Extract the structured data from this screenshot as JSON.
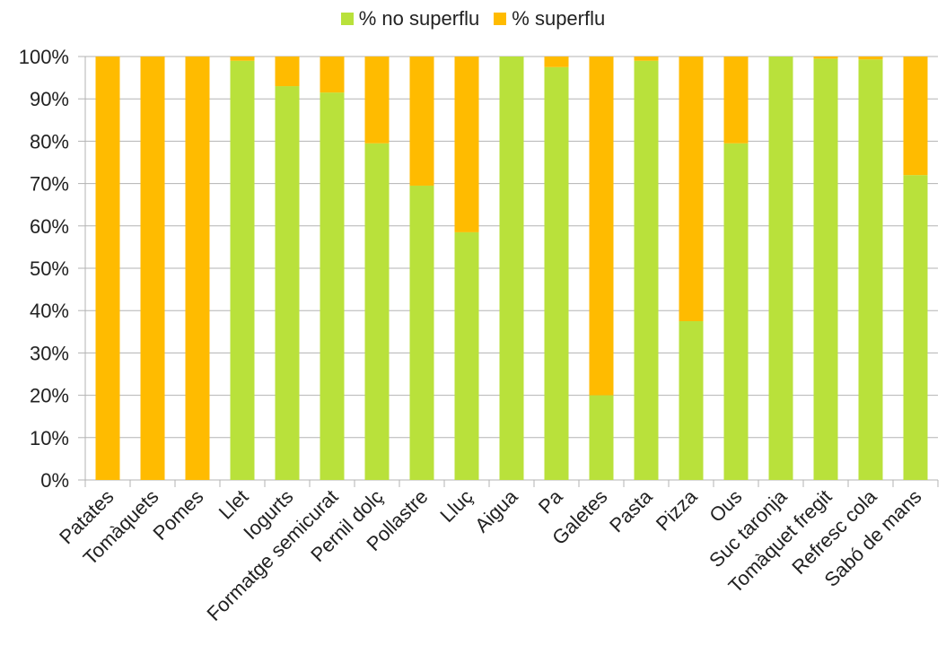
{
  "chart_data": {
    "type": "bar",
    "stacked": true,
    "title": "",
    "xlabel": "",
    "ylabel": "",
    "ylim": [
      0,
      100
    ],
    "yticks": [
      "0%",
      "10%",
      "20%",
      "30%",
      "40%",
      "50%",
      "60%",
      "70%",
      "80%",
      "90%",
      "100%"
    ],
    "grid": true,
    "legend_position": "top-center",
    "categories": [
      "Patates",
      "Tomàquets",
      "Pomes",
      "Llet",
      "Iogurts",
      "Formatge semicurat",
      "Pernil dolç",
      "Pollastre",
      "Lluç",
      "Aigua",
      "Pa",
      "Galetes",
      "Pasta",
      "Pizza",
      "Ous",
      "Suc taronja",
      "Tomàquet fregit",
      "Refresc cola",
      "Sabó de mans"
    ],
    "series": [
      {
        "name": "% no superflu",
        "color": "#b9e13b",
        "values": [
          0,
          0,
          0,
          99,
          93,
          91.5,
          79.5,
          69.5,
          58.5,
          100,
          97.5,
          20,
          99,
          37.5,
          79.5,
          100,
          99.5,
          99.3,
          72
        ]
      },
      {
        "name": "% superflu",
        "color": "#ffbb00",
        "values": [
          100,
          100,
          100,
          1,
          7,
          8.5,
          20.5,
          30.5,
          41.5,
          0,
          2.5,
          80,
          1,
          62.5,
          20.5,
          0,
          0.5,
          0.7,
          28
        ]
      }
    ]
  }
}
